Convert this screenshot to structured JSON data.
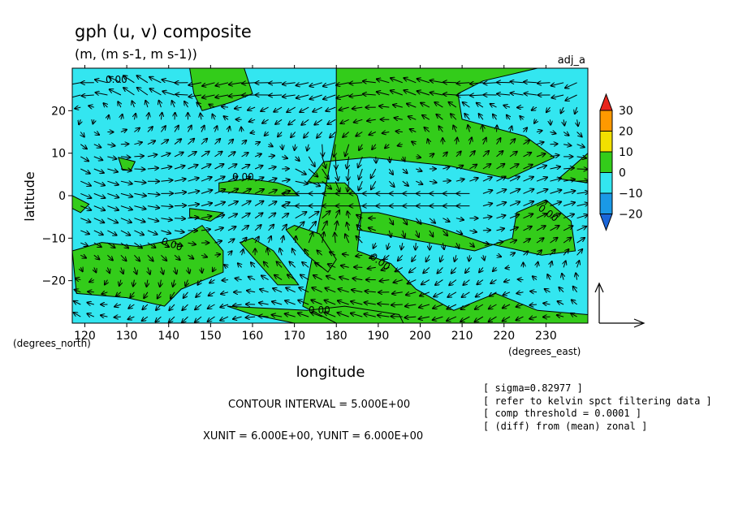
{
  "chart_data": {
    "type": "contour",
    "title": "gph (u, v) composite",
    "subtitle": "(m, (m s-1, m s-1))",
    "corner_label": "adj_a",
    "xlabel": "longitude",
    "ylabel": "latitude",
    "x_unit_label": "(degrees_east)",
    "y_unit_label": "(degrees_north)",
    "xlim": [
      117,
      240
    ],
    "ylim": [
      -30,
      30
    ],
    "x_ticks": [
      120,
      130,
      140,
      150,
      160,
      170,
      180,
      190,
      200,
      210,
      220,
      230
    ],
    "y_ticks": [
      -20,
      -10,
      0,
      10,
      20
    ],
    "y_tick_labels": [
      "−20",
      "−10",
      "0",
      "10",
      "20"
    ],
    "colorbar": {
      "levels": [
        "30",
        "20",
        "10",
        "0",
        "−10",
        "−20"
      ],
      "colors": [
        "#e8261d",
        "#ff9900",
        "#f2e000",
        "#33cc1a",
        "#33e6f0",
        "#1a99e6",
        "#1a66d9"
      ]
    },
    "filled_levels_shown": [
      {
        "range": "0 to 5",
        "color": "#33cc1a"
      },
      {
        "range": "-5 to 0",
        "color": "#33e6f0"
      }
    ],
    "contour_labels": [
      "0.00",
      "0.00",
      "0.00",
      "0.00",
      "0.00",
      "0.00"
    ],
    "regions_above_zero": [
      [
        [
          145,
          30
        ],
        [
          158,
          30
        ],
        [
          160,
          24
        ],
        [
          155,
          22
        ],
        [
          148,
          20
        ],
        [
          146,
          24
        ],
        [
          145,
          30
        ]
      ],
      [
        [
          180,
          30
        ],
        [
          228,
          30
        ],
        [
          215,
          27
        ],
        [
          209,
          24
        ],
        [
          210,
          18
        ],
        [
          225,
          14
        ],
        [
          232,
          9
        ],
        [
          221,
          4
        ],
        [
          207,
          7
        ],
        [
          188,
          9
        ],
        [
          177,
          8
        ],
        [
          173,
          3
        ],
        [
          182,
          3
        ],
        [
          185,
          0
        ],
        [
          186,
          -4
        ],
        [
          185,
          -8
        ],
        [
          196,
          -10
        ],
        [
          213,
          -13
        ],
        [
          222,
          -10
        ],
        [
          223,
          -4
        ],
        [
          230,
          -1
        ],
        [
          236,
          -6
        ],
        [
          237,
          -13
        ],
        [
          229,
          -14
        ],
        [
          215,
          -11
        ],
        [
          203,
          -7
        ],
        [
          190,
          -4
        ],
        [
          186,
          -4
        ],
        [
          185,
          -13
        ],
        [
          193,
          -16
        ],
        [
          199,
          -22
        ],
        [
          208,
          -27
        ],
        [
          218,
          -23
        ],
        [
          228,
          -27
        ],
        [
          240,
          -28
        ],
        [
          240,
          -30
        ],
        [
          170,
          -30
        ],
        [
          160,
          -28
        ],
        [
          154,
          -26
        ],
        [
          173,
          -27
        ],
        [
          182,
          -26
        ],
        [
          195,
          -28
        ],
        [
          196,
          -30
        ],
        [
          180,
          -30
        ],
        [
          172,
          -26
        ],
        [
          180,
          15
        ],
        [
          180,
          30
        ]
      ],
      [
        [
          117,
          -13
        ],
        [
          124,
          -11
        ],
        [
          133,
          -12
        ],
        [
          143,
          -10
        ],
        [
          148,
          -7
        ],
        [
          153,
          -13
        ],
        [
          153,
          -18
        ],
        [
          143,
          -22
        ],
        [
          139,
          -26
        ],
        [
          130,
          -24
        ],
        [
          118,
          -23
        ],
        [
          117,
          -13
        ]
      ],
      [
        [
          157,
          -11
        ],
        [
          166,
          -21
        ],
        [
          171,
          -21
        ],
        [
          165,
          -13
        ],
        [
          160,
          -10
        ],
        [
          157,
          -11
        ]
      ],
      [
        [
          168,
          -8
        ],
        [
          173,
          -14
        ],
        [
          178,
          -18
        ],
        [
          180,
          -15
        ],
        [
          176,
          -9
        ],
        [
          170,
          -7
        ],
        [
          168,
          -8
        ]
      ],
      [
        [
          152,
          3
        ],
        [
          159,
          4
        ],
        [
          166,
          3
        ],
        [
          169,
          2
        ],
        [
          171,
          0
        ],
        [
          165,
          0
        ],
        [
          152,
          1
        ],
        [
          152,
          3
        ]
      ],
      [
        [
          145,
          -3
        ],
        [
          153,
          -4
        ],
        [
          150,
          -6
        ],
        [
          145,
          -5
        ],
        [
          145,
          -3
        ]
      ],
      [
        [
          128,
          9
        ],
        [
          132,
          8
        ],
        [
          131,
          6
        ],
        [
          129,
          6
        ],
        [
          128,
          9
        ]
      ],
      [
        [
          117,
          0
        ],
        [
          121,
          -2
        ],
        [
          119,
          -4
        ],
        [
          117,
          -3
        ],
        [
          117,
          0
        ]
      ],
      [
        [
          233,
          4
        ],
        [
          240,
          10
        ],
        [
          240,
          3
        ],
        [
          233,
          4
        ]
      ]
    ],
    "vector_field": "quiver (u, v) arrows on ~3 degree grid",
    "reference_vector": {
      "u": 6,
      "v": 6
    },
    "footer_lines": [
      "CONTOUR INTERVAL = 5.000E+00",
      "XUNIT = 6.000E+00, YUNIT = 6.000E+00"
    ],
    "notes": [
      "[ sigma=0.82977 ]",
      "[ refer to kelvin spct filtering data ]",
      "[ comp threshold = 0.0001 ]",
      "[ (diff) from (mean) zonal ]"
    ]
  }
}
